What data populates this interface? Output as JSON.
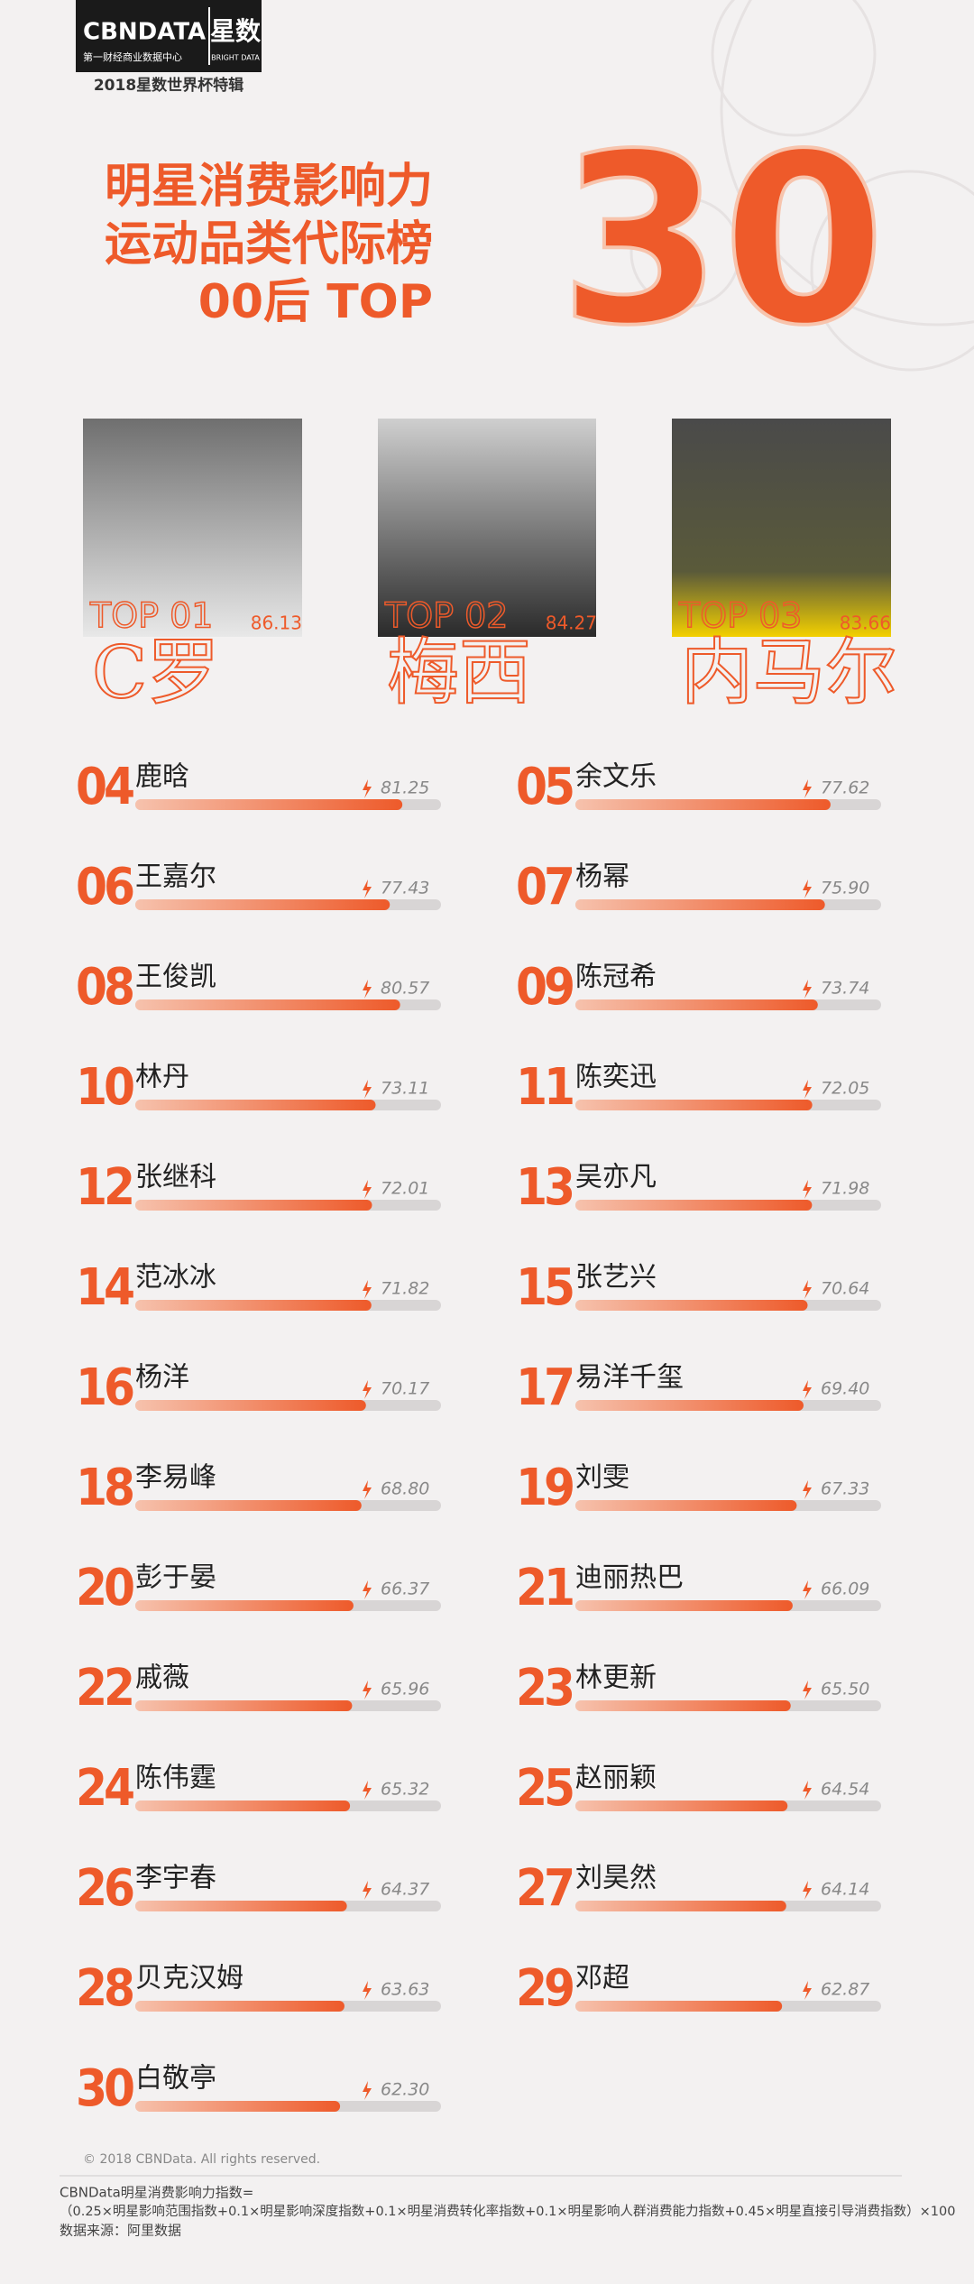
{
  "chart_data": {
    "type": "bar",
    "brand": "CBNDATA",
    "brand_cn": "星数",
    "brand_sub": "第一财经商业数据中心",
    "brand_sub_en": "BRIGHT DATA",
    "edition": "2018星数世界杯特辑",
    "title_lines": [
      "明星消费影响力",
      "运动品类代际榜",
      "00后 TOP"
    ],
    "title_number": "30",
    "top3": [
      {
        "rank": "TOP 01",
        "name": "C罗",
        "score": "86.13"
      },
      {
        "rank": "TOP 02",
        "name": "梅西",
        "score": "84.27"
      },
      {
        "rank": "TOP 03",
        "name": "内马尔",
        "score": "83.66"
      }
    ],
    "ranks": [
      "04",
      "05",
      "06",
      "07",
      "08",
      "09",
      "10",
      "11",
      "12",
      "13",
      "14",
      "15",
      "16",
      "17",
      "18",
      "19",
      "20",
      "21",
      "22",
      "23",
      "24",
      "25",
      "26",
      "27",
      "28",
      "29",
      "30"
    ],
    "categories": [
      "鹿晗",
      "余文乐",
      "王嘉尔",
      "杨幂",
      "王俊凯",
      "陈冠希",
      "林丹",
      "陈奕迅",
      "张继科",
      "吴亦凡",
      "范冰冰",
      "张艺兴",
      "杨洋",
      "易洋千玺",
      "李易峰",
      "刘雯",
      "彭于晏",
      "迪丽热巴",
      "戚薇",
      "林更新",
      "陈伟霆",
      "赵丽颖",
      "李宇春",
      "刘昊然",
      "贝克汉姆",
      "邓超",
      "白敬亭"
    ],
    "values": [
      81.25,
      77.62,
      77.43,
      75.9,
      80.57,
      73.74,
      73.11,
      72.05,
      72.01,
      71.98,
      71.82,
      70.64,
      70.17,
      69.4,
      68.8,
      67.33,
      66.37,
      66.09,
      65.96,
      65.5,
      65.32,
      64.54,
      64.37,
      64.14,
      63.63,
      62.87,
      62.3
    ],
    "value_labels": [
      "81.25",
      "77.62",
      "77.43",
      "75.90",
      "80.57",
      "73.74",
      "73.11",
      "72.05",
      "72.01",
      "71.98",
      "71.82",
      "70.64",
      "70.17",
      "69.40",
      "68.80",
      "67.33",
      "66.37",
      "66.09",
      "65.96",
      "65.50",
      "65.32",
      "64.54",
      "64.37",
      "64.14",
      "63.63",
      "62.87",
      "62.30"
    ],
    "xlim": [
      0,
      93
    ],
    "color": "#ee5a2a",
    "copyright": "© 2018 CBNData. All rights reserved.",
    "formula": [
      "CBNData明星消费影响力指数=",
      "（0.25×明星影响范围指数+0.1×明星影响深度指数+0.1×明星消费转化率指数+0.1×明星影响人群消费能力指数+0.45×明星直接引导消费指数）×100",
      "数据来源：阿里数据"
    ]
  }
}
